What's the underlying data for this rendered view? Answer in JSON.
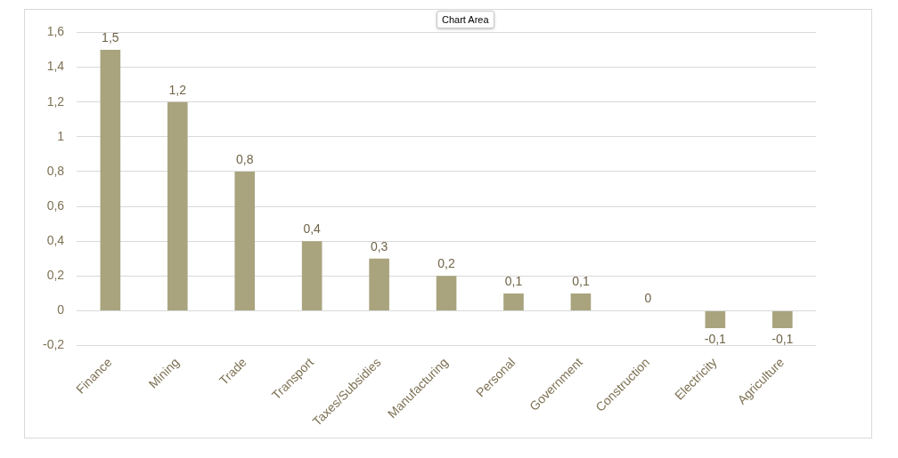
{
  "chart_data": {
    "type": "bar",
    "annotations": [
      "Chart Area"
    ],
    "categories": [
      "Finance",
      "Mining",
      "Trade",
      "Transport",
      "Taxes/Subsidies",
      "Manufacturing",
      "Personal",
      "Government",
      "Construction",
      "Electricity",
      "Agriculture"
    ],
    "values": [
      1.5,
      1.2,
      0.8,
      0.4,
      0.3,
      0.2,
      0.1,
      0.1,
      0,
      -0.1,
      -0.1
    ],
    "value_labels": [
      "1,5",
      "1,2",
      "0,8",
      "0,4",
      "0,3",
      "0,2",
      "0,1",
      "0,1",
      "0",
      "-0,1",
      "-0,1"
    ],
    "color": "#a9a47e",
    "ylim": [
      -0.2,
      1.6
    ],
    "yticks": [
      {
        "value": -0.2,
        "label": "-0,2"
      },
      0,
      {
        "value": 0.2,
        "label": "0,2"
      },
      {
        "value": 0.4,
        "label": "0,4"
      },
      {
        "value": 0.6,
        "label": "0,6"
      },
      {
        "value": 0.8,
        "label": "0,8"
      },
      1,
      {
        "value": 1.2,
        "label": "1,2"
      },
      {
        "value": 1.4,
        "label": "1,4"
      },
      {
        "value": 1.6,
        "label": "1,6"
      }
    ],
    "grid": true,
    "data_labels": true
  }
}
